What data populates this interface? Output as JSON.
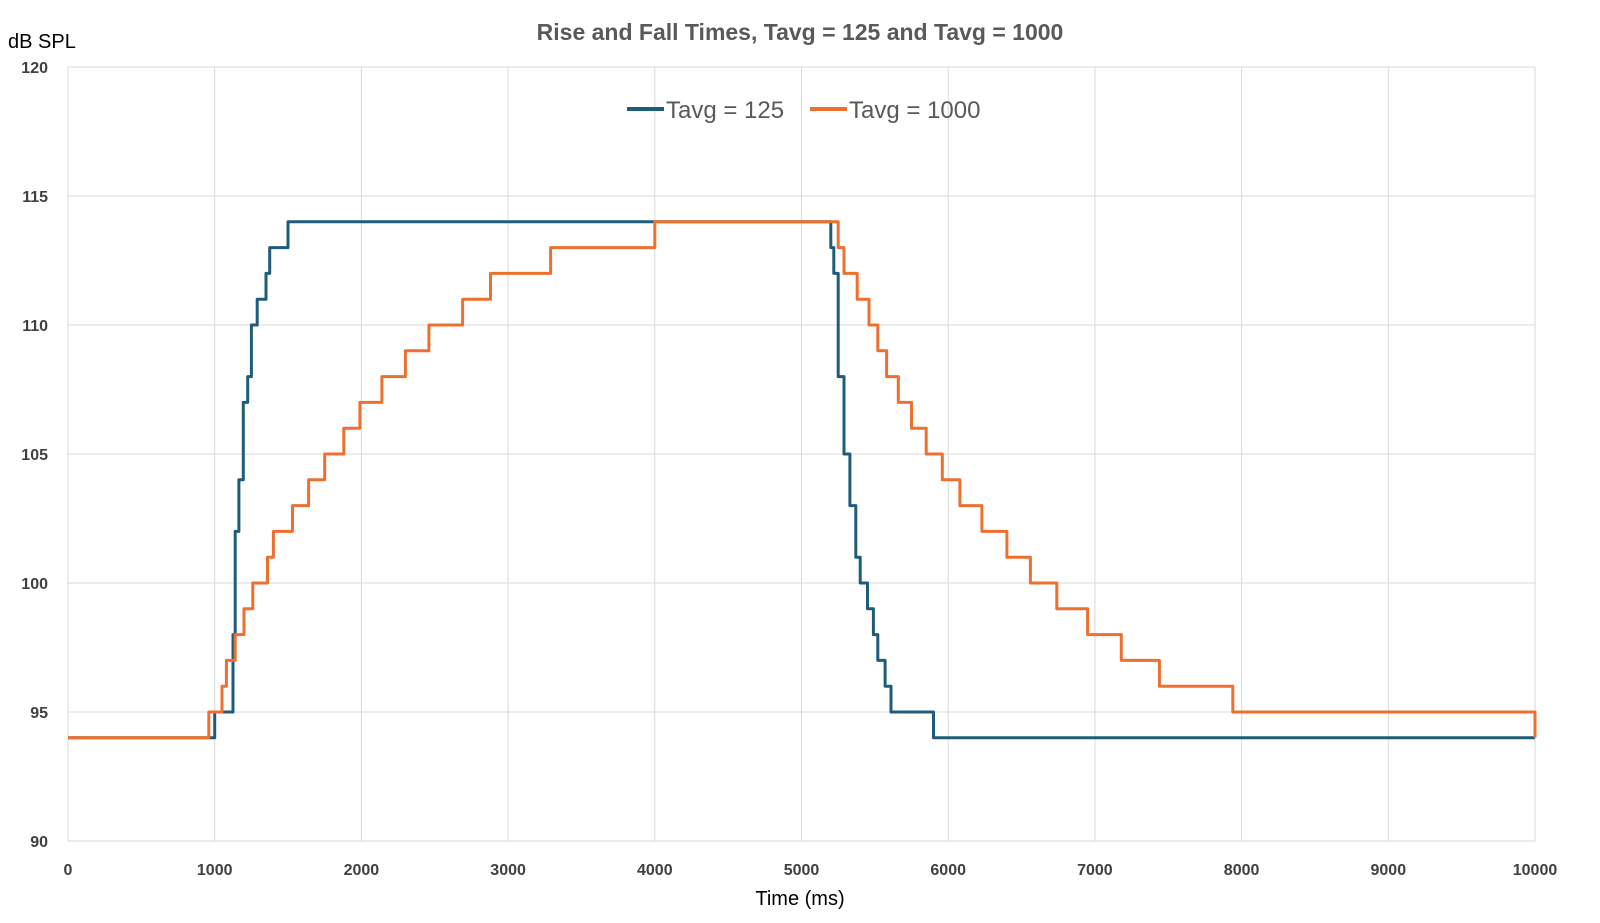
{
  "chart_data": {
    "type": "line",
    "title": "Rise and Fall Times, Tavg = 125 and Tavg = 1000",
    "xlabel": "Time (ms)",
    "ylabel": "dB SPL",
    "xlim": [
      0,
      10000
    ],
    "ylim": [
      90,
      120
    ],
    "x_ticks": [
      0,
      1000,
      2000,
      3000,
      4000,
      5000,
      6000,
      7000,
      8000,
      9000,
      10000
    ],
    "y_ticks": [
      90,
      95,
      100,
      105,
      110,
      115,
      120
    ],
    "grid": true,
    "legend_position": "top-center",
    "series": [
      {
        "name": "Tavg = 125",
        "color": "#1f5c7a",
        "step": true,
        "points": [
          [
            0,
            94
          ],
          [
            1000,
            95
          ],
          [
            1125,
            98
          ],
          [
            1140,
            102
          ],
          [
            1165,
            104
          ],
          [
            1195,
            107
          ],
          [
            1225,
            108
          ],
          [
            1250,
            110
          ],
          [
            1290,
            111
          ],
          [
            1350,
            112
          ],
          [
            1375,
            113
          ],
          [
            1500,
            114
          ],
          [
            5200,
            113
          ],
          [
            5220,
            112
          ],
          [
            5250,
            108
          ],
          [
            5290,
            105
          ],
          [
            5330,
            103
          ],
          [
            5370,
            101
          ],
          [
            5400,
            100
          ],
          [
            5450,
            99
          ],
          [
            5490,
            98
          ],
          [
            5520,
            97
          ],
          [
            5570,
            96
          ],
          [
            5610,
            95
          ],
          [
            5900,
            94
          ],
          [
            10000,
            94
          ]
        ]
      },
      {
        "name": "Tavg = 1000",
        "color": "#ec7130",
        "step": true,
        "points": [
          [
            0,
            94
          ],
          [
            960,
            95
          ],
          [
            1050,
            96
          ],
          [
            1080,
            97
          ],
          [
            1140,
            98
          ],
          [
            1200,
            99
          ],
          [
            1260,
            100
          ],
          [
            1360,
            101
          ],
          [
            1400,
            102
          ],
          [
            1530,
            103
          ],
          [
            1640,
            104
          ],
          [
            1750,
            105
          ],
          [
            1880,
            106
          ],
          [
            1990,
            107
          ],
          [
            2140,
            108
          ],
          [
            2300,
            109
          ],
          [
            2460,
            110
          ],
          [
            2690,
            111
          ],
          [
            2880,
            112
          ],
          [
            3290,
            113
          ],
          [
            4000,
            114
          ],
          [
            5250,
            113
          ],
          [
            5290,
            112
          ],
          [
            5380,
            111
          ],
          [
            5460,
            110
          ],
          [
            5520,
            109
          ],
          [
            5580,
            108
          ],
          [
            5660,
            107
          ],
          [
            5750,
            106
          ],
          [
            5850,
            105
          ],
          [
            5960,
            104
          ],
          [
            6080,
            103
          ],
          [
            6230,
            102
          ],
          [
            6400,
            101
          ],
          [
            6560,
            100
          ],
          [
            6740,
            99
          ],
          [
            6950,
            98
          ],
          [
            7180,
            97
          ],
          [
            7440,
            96
          ],
          [
            7940,
            95
          ],
          [
            8140,
            95
          ],
          [
            10000,
            94
          ]
        ]
      }
    ]
  }
}
